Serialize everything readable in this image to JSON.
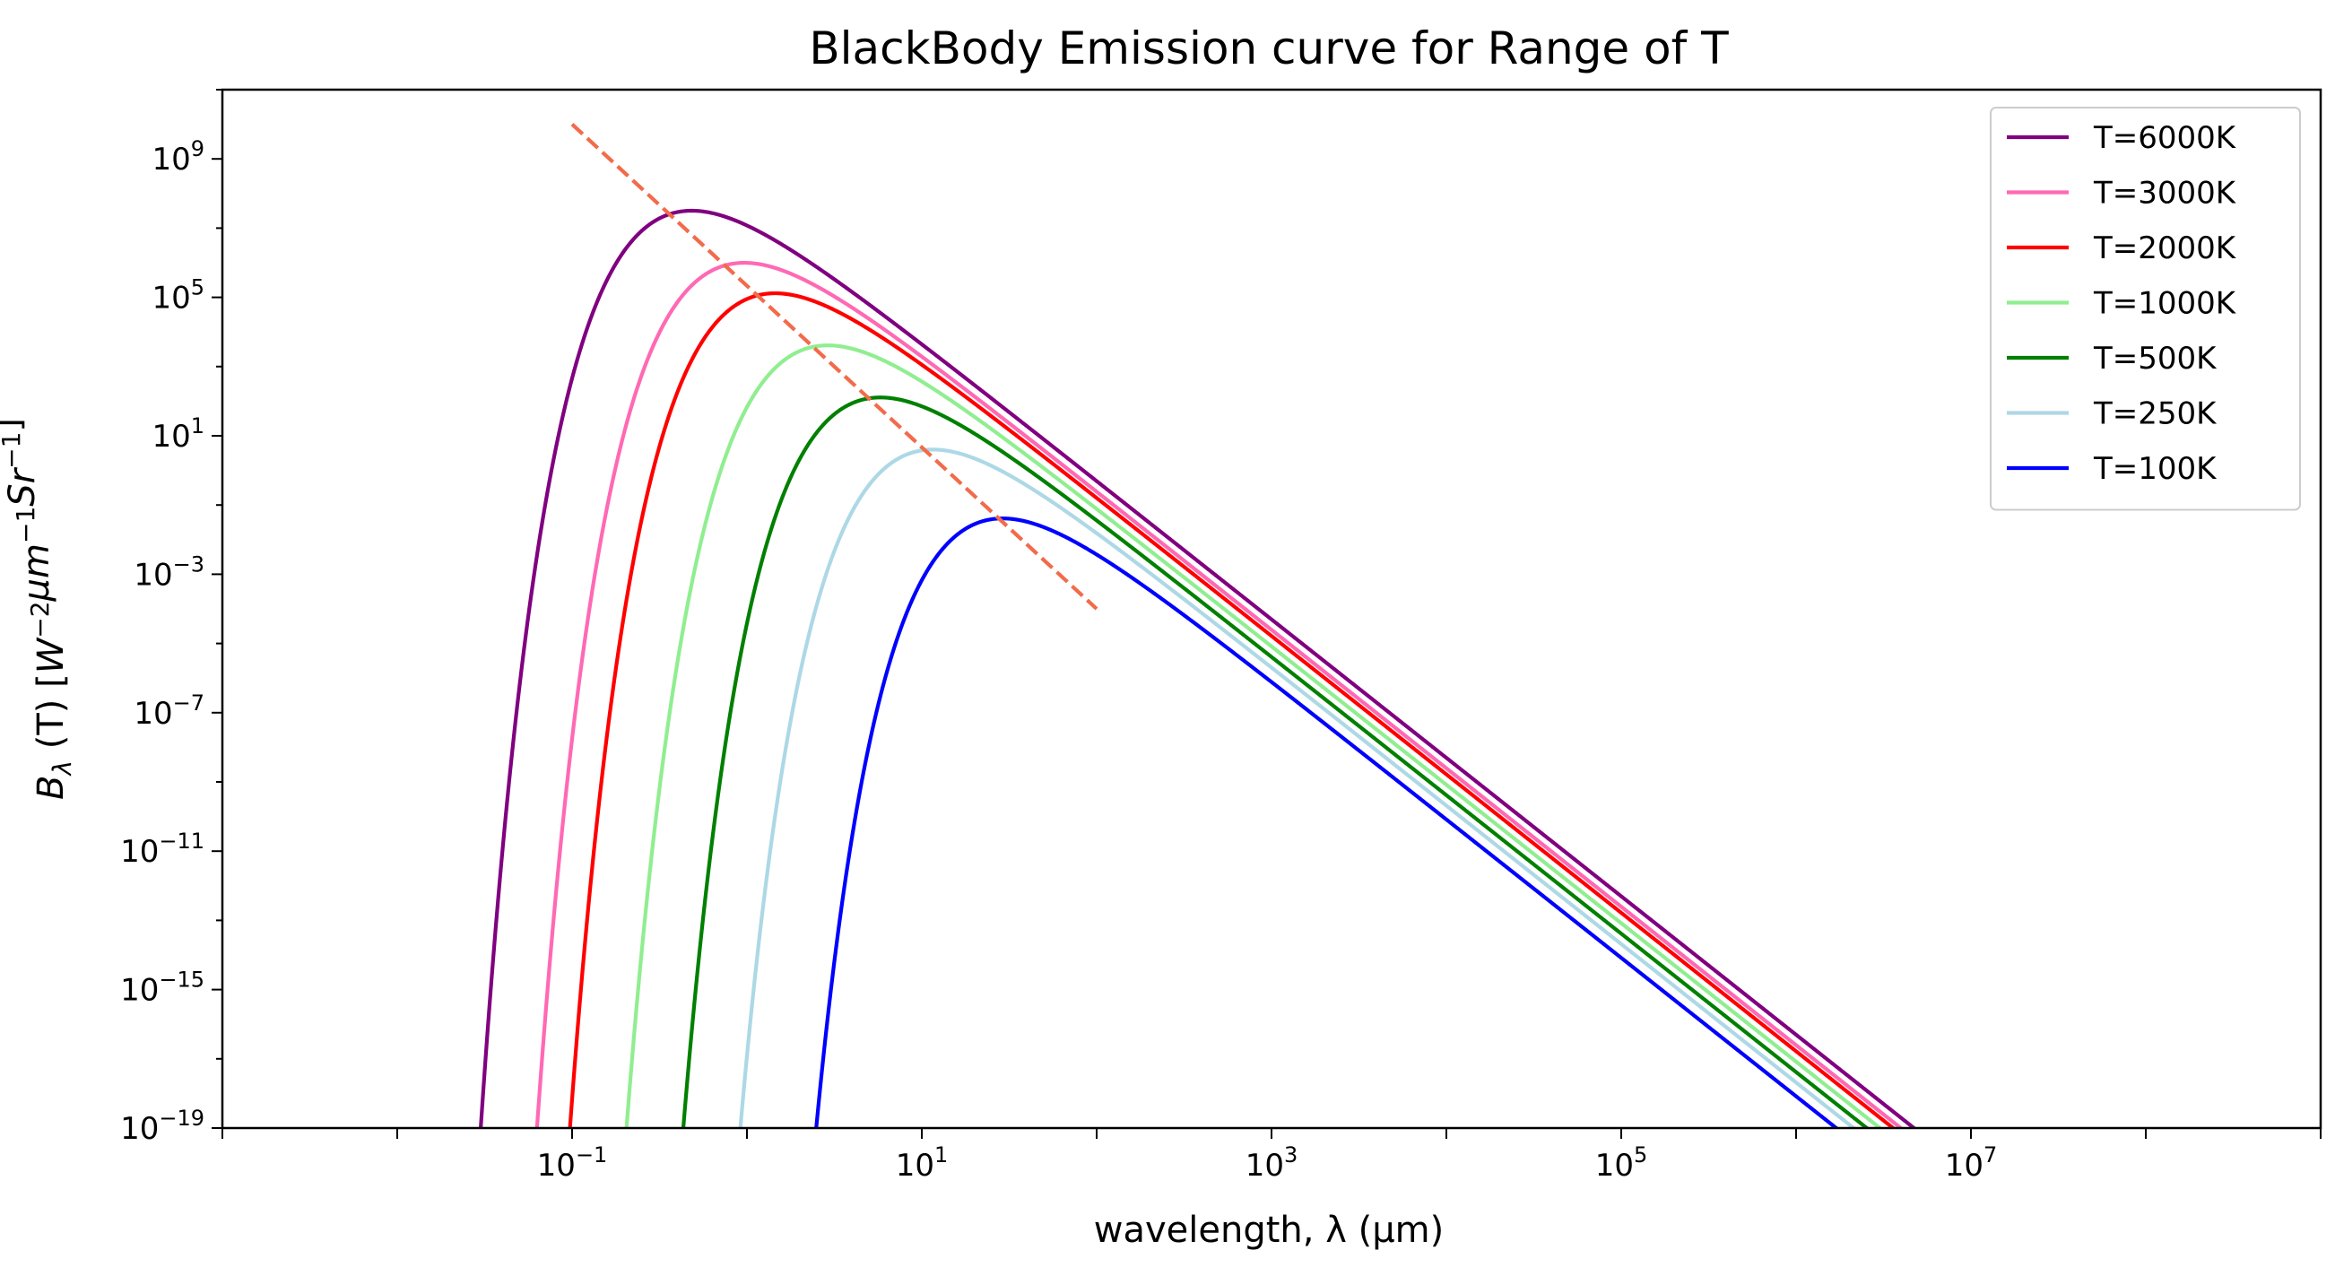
{
  "chart_data": {
    "type": "line",
    "title": "BlackBody Emission curve for Range of T",
    "xlabel": "wavelength, λ (μm)",
    "ylabel": {
      "base": "B",
      "sub": "λ",
      "mid": " (T) [",
      "parts": [
        {
          "t": "W",
          "sup": "−2"
        },
        {
          "t": "μm",
          "sup": "−1"
        },
        {
          "t": "Sr",
          "sup": "−1"
        }
      ],
      "end": "]"
    },
    "x_scale": "log",
    "y_scale": "log",
    "xlim": [
      0.001,
      1000000000
    ],
    "ylim": [
      1e-19,
      100000000000.0
    ],
    "x_ticks": [
      {
        "base": "10",
        "exp": "−1",
        "value": 0.1
      },
      {
        "base": "10",
        "exp": "1",
        "value": 10
      },
      {
        "base": "10",
        "exp": "3",
        "value": 1000
      },
      {
        "base": "10",
        "exp": "5",
        "value": 100000
      },
      {
        "base": "10",
        "exp": "7",
        "value": 10000000
      }
    ],
    "y_ticks": [
      {
        "base": "10",
        "exp": "9",
        "value": 1000000000.0
      },
      {
        "base": "10",
        "exp": "5",
        "value": 100000.0
      },
      {
        "base": "10",
        "exp": "1",
        "value": 10
      },
      {
        "base": "10",
        "exp": "−3",
        "value": 0.001
      },
      {
        "base": "10",
        "exp": "−7",
        "value": 1e-07
      },
      {
        "base": "10",
        "exp": "−11",
        "value": 1e-11
      },
      {
        "base": "10",
        "exp": "−15",
        "value": 1e-15
      },
      {
        "base": "10",
        "exp": "−19",
        "value": 1e-19
      }
    ],
    "grid": false,
    "legend_position": "top-right",
    "series": [
      {
        "name": "T=6000K",
        "temperature": 6000,
        "color": "#800080"
      },
      {
        "name": "T=3000K",
        "temperature": 3000,
        "color": "#ff69b4"
      },
      {
        "name": "T=2000K",
        "temperature": 2000,
        "color": "#ff0000"
      },
      {
        "name": "T=1000K",
        "temperature": 1000,
        "color": "#90ee90"
      },
      {
        "name": "T=500K",
        "temperature": 500,
        "color": "#008000"
      },
      {
        "name": "T=250K",
        "temperature": 250,
        "color": "#add8e6"
      },
      {
        "name": "T=100K",
        "temperature": 100,
        "color": "#0000ff"
      }
    ],
    "wien_line": {
      "style": "dashed",
      "color": "#f26b4a",
      "x": [
        0.1,
        100
      ],
      "y": [
        10000000000.0,
        0.0001
      ]
    }
  }
}
